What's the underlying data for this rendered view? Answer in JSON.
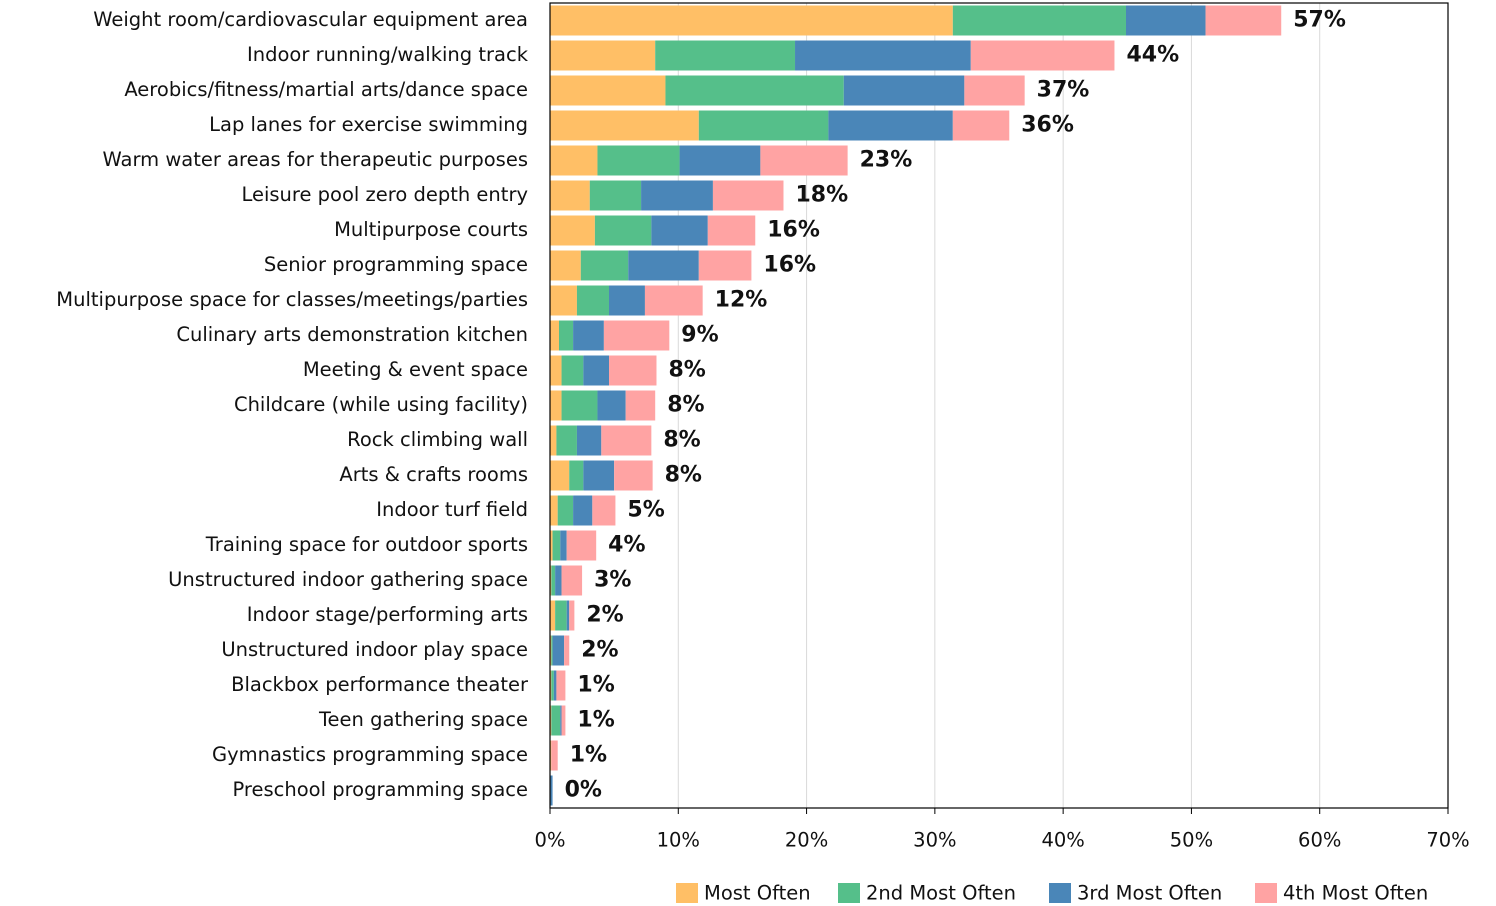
{
  "chart_data": {
    "type": "stacked-bar-horizontal",
    "categories": [
      "Weight room/cardiovascular equipment area",
      "Indoor running/walking track",
      "Aerobics/fitness/martial arts/dance space",
      "Lap lanes for exercise swimming",
      "Warm water areas for therapeutic purposes",
      "Leisure pool zero depth entry",
      "Multipurpose courts",
      "Senior programming space",
      "Multipurpose space for classes/meetings/parties",
      "Culinary arts demonstration kitchen",
      "Meeting & event space",
      "Childcare (while using facility)",
      "Rock climbing wall",
      "Arts & crafts rooms",
      "Indoor turf field",
      "Training space for outdoor sports",
      "Unstructured indoor gathering space",
      "Indoor stage/performing arts",
      "Unstructured indoor play space",
      "Blackbox performance theater",
      "Teen gathering space",
      "Gymnastics programming space",
      "Preschool programming space"
    ],
    "series": [
      {
        "name": "Most Often",
        "color": "#FFBF66",
        "values": [
          31.4,
          8.2,
          9.0,
          11.6,
          3.7,
          3.1,
          3.5,
          2.4,
          2.1,
          0.7,
          0.9,
          0.9,
          0.5,
          1.5,
          0.6,
          0.2,
          0.1,
          0.4,
          0.1,
          0.1,
          0.1,
          0.1,
          0
        ]
      },
      {
        "name": "2nd Most Often",
        "color": "#55BF8A",
        "values": [
          13.5,
          10.9,
          13.9,
          10.1,
          6.4,
          4.0,
          4.4,
          3.7,
          2.5,
          1.1,
          1.7,
          2.8,
          1.6,
          1.1,
          1.2,
          0.6,
          0.3,
          0.9,
          0.1,
          0.2,
          0.7,
          0,
          0
        ]
      },
      {
        "name": "3rd Most Often",
        "color": "#4A86B8",
        "values": [
          6.2,
          13.7,
          9.4,
          9.7,
          6.3,
          5.6,
          4.4,
          5.5,
          2.8,
          2.4,
          2.0,
          2.2,
          1.9,
          2.4,
          1.5,
          0.5,
          0.5,
          0.2,
          0.9,
          0.2,
          0.1,
          0,
          0.2
        ]
      },
      {
        "name": "4th Most Often",
        "color": "#FFA3A3",
        "values": [
          5.9,
          11.2,
          4.7,
          4.4,
          6.8,
          5.5,
          3.7,
          4.1,
          4.5,
          5.1,
          3.7,
          2.3,
          3.9,
          3.0,
          1.8,
          2.3,
          1.6,
          0.4,
          0.4,
          0.7,
          0.3,
          0.5,
          0
        ]
      }
    ],
    "total_labels": [
      "57%",
      "44%",
      "37%",
      "36%",
      "23%",
      "18%",
      "16%",
      "16%",
      "12%",
      "9%",
      "8%",
      "8%",
      "8%",
      "8%",
      "5%",
      "4%",
      "3%",
      "2%",
      "2%",
      "1%",
      "1%",
      "1%",
      "0%"
    ],
    "xlim": [
      0,
      70
    ],
    "xticks": [
      {
        "value": 0,
        "label": "0%"
      },
      {
        "value": 10,
        "label": "10%"
      },
      {
        "value": 20,
        "label": "20%"
      },
      {
        "value": 30,
        "label": "30%"
      },
      {
        "value": 40,
        "label": "40%"
      },
      {
        "value": 50,
        "label": "50%"
      },
      {
        "value": 60,
        "label": "60%"
      },
      {
        "value": 70,
        "label": "70%"
      }
    ],
    "grid": true,
    "legend": "bottom"
  }
}
